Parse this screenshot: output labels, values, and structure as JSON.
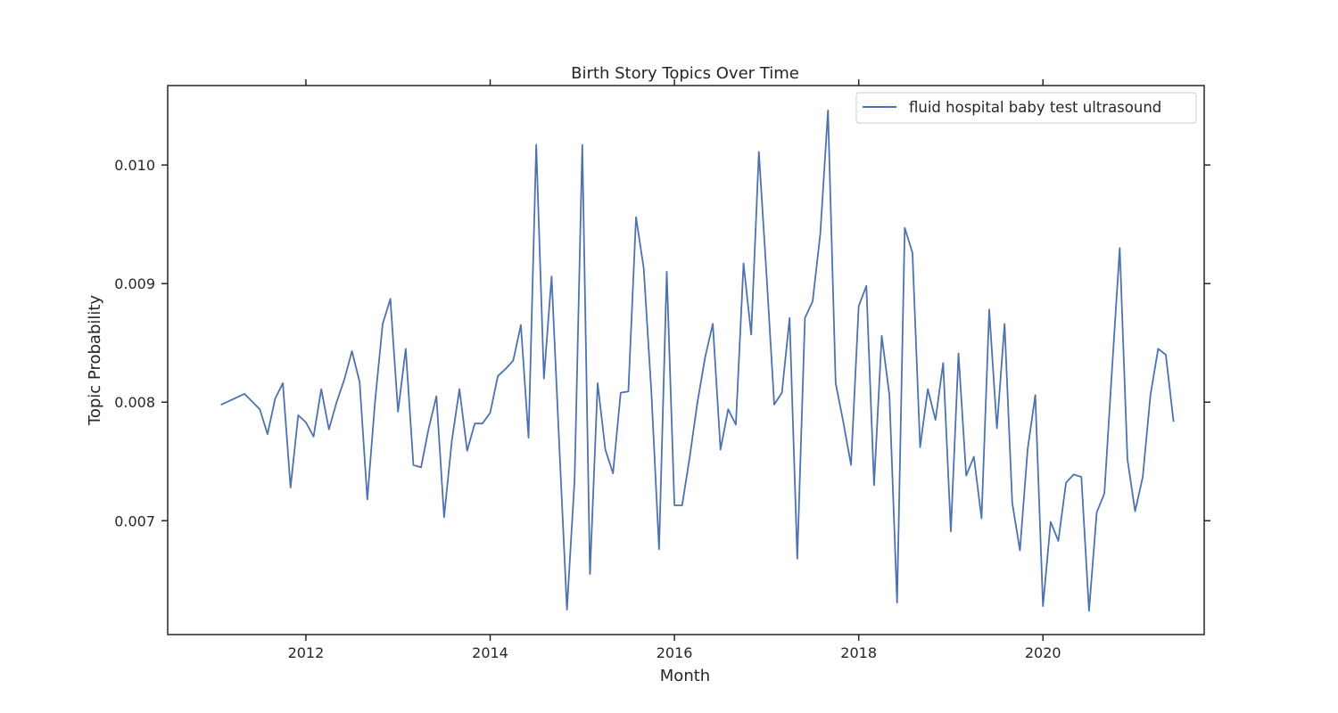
{
  "chart_data": {
    "type": "line",
    "title": "Birth Story Topics Over Time",
    "xlabel": "Month",
    "ylabel": "Topic Probability",
    "x_ticks": [
      "2012",
      "2014",
      "2016",
      "2018",
      "2020"
    ],
    "y_ticks": [
      "0.007",
      "0.008",
      "0.009",
      "0.010"
    ],
    "xlim": [
      "2010-07",
      "2021-10"
    ],
    "ylim": [
      0.00604,
      0.01067
    ],
    "grid": false,
    "legend_position": "top-right",
    "colors": {
      "line": "#4c72b0",
      "axes": "#262626"
    },
    "series": [
      {
        "name": "fluid hospital baby test ultrasound",
        "x": [
          "2011-02",
          "2011-05",
          "2011-07",
          "2011-08",
          "2011-09",
          "2011-10",
          "2011-11",
          "2011-12",
          "2012-01",
          "2012-02",
          "2012-03",
          "2012-04",
          "2012-05",
          "2012-06",
          "2012-07",
          "2012-08",
          "2012-09",
          "2012-10",
          "2012-11",
          "2012-12",
          "2013-01",
          "2013-02",
          "2013-03",
          "2013-04",
          "2013-05",
          "2013-06",
          "2013-07",
          "2013-08",
          "2013-09",
          "2013-10",
          "2013-11",
          "2013-12",
          "2014-01",
          "2014-02",
          "2014-03",
          "2014-04",
          "2014-05",
          "2014-06",
          "2014-07",
          "2014-08",
          "2014-09",
          "2014-10",
          "2014-11",
          "2014-12",
          "2015-01",
          "2015-02",
          "2015-03",
          "2015-04",
          "2015-05",
          "2015-06",
          "2015-07",
          "2015-08",
          "2015-09",
          "2015-10",
          "2015-11",
          "2015-12",
          "2016-01",
          "2016-02",
          "2016-03",
          "2016-04",
          "2016-05",
          "2016-06",
          "2016-07",
          "2016-08",
          "2016-09",
          "2016-10",
          "2016-11",
          "2016-12",
          "2017-01",
          "2017-02",
          "2017-03",
          "2017-04",
          "2017-05",
          "2017-06",
          "2017-07",
          "2017-08",
          "2017-09",
          "2017-10",
          "2017-11",
          "2017-12",
          "2018-01",
          "2018-02",
          "2018-03",
          "2018-04",
          "2018-05",
          "2018-06",
          "2018-07",
          "2018-08",
          "2018-09",
          "2018-10",
          "2018-11",
          "2018-12",
          "2019-01",
          "2019-02",
          "2019-03",
          "2019-04",
          "2019-05",
          "2019-06",
          "2019-07",
          "2019-08",
          "2019-09",
          "2019-10",
          "2019-11",
          "2019-12",
          "2020-01",
          "2020-02",
          "2020-03",
          "2020-04",
          "2020-05",
          "2020-06",
          "2020-07",
          "2020-08",
          "2020-09",
          "2020-10",
          "2020-11",
          "2020-12",
          "2021-01",
          "2021-02",
          "2021-03",
          "2021-04",
          "2021-05",
          "2021-06"
        ],
        "values": [
          0.00798,
          0.00807,
          0.00794,
          0.00773,
          0.00803,
          0.00816,
          0.00728,
          0.00789,
          0.00783,
          0.00771,
          0.00811,
          0.00777,
          0.008,
          0.00819,
          0.00843,
          0.00817,
          0.00718,
          0.008,
          0.00866,
          0.00887,
          0.00792,
          0.00845,
          0.00747,
          0.00745,
          0.00778,
          0.00805,
          0.00703,
          0.00767,
          0.00811,
          0.00759,
          0.00782,
          0.00782,
          0.00791,
          0.00822,
          0.00828,
          0.00835,
          0.00865,
          0.0077,
          0.01017,
          0.0082,
          0.00906,
          0.00764,
          0.00625,
          0.00735,
          0.01017,
          0.00655,
          0.00816,
          0.0076,
          0.0074,
          0.00808,
          0.00809,
          0.00956,
          0.00913,
          0.00808,
          0.00676,
          0.0091,
          0.00713,
          0.00713,
          0.00754,
          0.008,
          0.00838,
          0.00866,
          0.0076,
          0.00794,
          0.00781,
          0.00917,
          0.00857,
          0.01011,
          0.00907,
          0.00798,
          0.00808,
          0.00871,
          0.00668,
          0.00871,
          0.00885,
          0.00942,
          0.01046,
          0.00816,
          0.00783,
          0.00747,
          0.00881,
          0.00898,
          0.0073,
          0.00856,
          0.00806,
          0.00631,
          0.00947,
          0.00926,
          0.00762,
          0.00811,
          0.00785,
          0.00833,
          0.00691,
          0.00841,
          0.00738,
          0.00754,
          0.00702,
          0.00878,
          0.00778,
          0.00866,
          0.00715,
          0.00675,
          0.0076,
          0.00806,
          0.00628,
          0.00699,
          0.00683,
          0.00732,
          0.00739,
          0.00737,
          0.00624,
          0.00707,
          0.00723,
          0.00828,
          0.0093,
          0.00752,
          0.00708,
          0.00737,
          0.00806,
          0.00845,
          0.0084,
          0.00784
        ]
      }
    ]
  }
}
